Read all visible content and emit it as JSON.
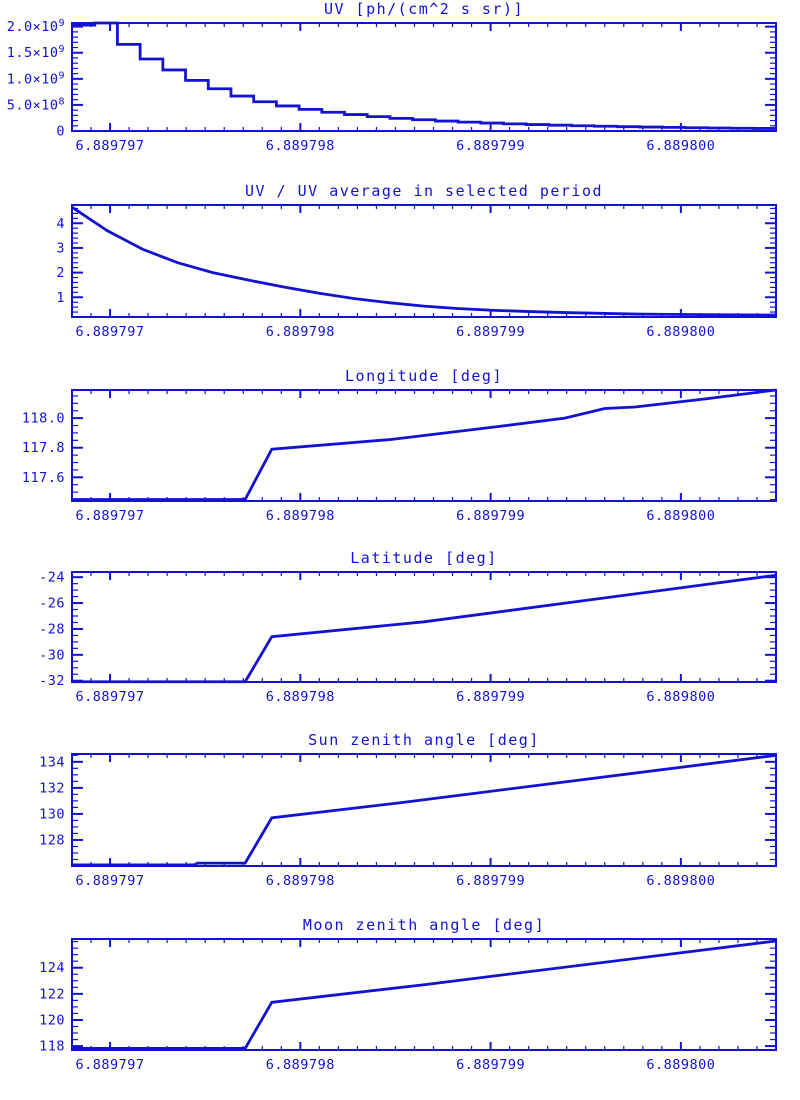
{
  "figure": {
    "background": "#ffffff",
    "line_color": "#1212d0",
    "x_axis": {
      "range": [
        6.8897968,
        6.8898005
      ],
      "major_ticks": [
        6.889797,
        6.889798,
        6.889799,
        6.8898
      ],
      "major_tick_labels": [
        "6.889797",
        "6.889798",
        "6.889799",
        "6.889800"
      ],
      "minor_tick_step": 1e-07
    }
  },
  "chart_data": [
    {
      "type": "step",
      "title": "UV [ph/(cm^2 s sr)]",
      "ylim": [
        0,
        2070000000.0
      ],
      "y_ticks": [
        {
          "value": 0,
          "label": "0"
        },
        {
          "value": 500000000.0,
          "label": "5.0×10^8"
        },
        {
          "value": 1000000000.0,
          "label": "1.0×10^9"
        },
        {
          "value": 1500000000.0,
          "label": "1.5×10^9"
        },
        {
          "value": 2000000000.0,
          "label": "2.0×10^9"
        }
      ],
      "y_minor_step": 100000000.0,
      "x_start": 6.8897968,
      "x_end": 6.8898005,
      "values": [
        2030000000.0,
        2070000000.0,
        1660000000.0,
        1380000000.0,
        1170000000.0,
        970000000.0,
        810000000.0,
        670000000.0,
        560000000.0,
        480000000.0,
        415000000.0,
        360000000.0,
        315000000.0,
        275000000.0,
        242000000.0,
        215000000.0,
        190000000.0,
        170000000.0,
        152000000.0,
        137000000.0,
        123000000.0,
        111000000.0,
        100000000.0,
        91000000.0,
        83000000.0,
        75000000.0,
        69000000.0,
        63000000.0,
        58000000.0,
        53000000.0,
        49000000.0
      ]
    },
    {
      "type": "line",
      "title": "UV / UV average in selected period",
      "ylim": [
        0.2,
        4.74
      ],
      "y_ticks": [
        {
          "value": 1,
          "label": "1"
        },
        {
          "value": 2,
          "label": "2"
        },
        {
          "value": 3,
          "label": "3"
        },
        {
          "value": 4,
          "label": "4"
        }
      ],
      "y_minor_step": 0.2,
      "x_start": 6.8897968,
      "x_end": 6.8898005,
      "values": [
        4.65,
        3.7,
        2.95,
        2.4,
        2.0,
        1.7,
        1.42,
        1.17,
        0.95,
        0.78,
        0.64,
        0.54,
        0.47,
        0.42,
        0.38,
        0.35,
        0.32,
        0.305,
        0.295,
        0.285,
        0.28
      ]
    },
    {
      "type": "line",
      "title": "Longitude [deg]",
      "ylim": [
        117.44,
        118.19
      ],
      "y_ticks": [
        {
          "value": 117.6,
          "label": "117.6"
        },
        {
          "value": 117.8,
          "label": "117.8"
        },
        {
          "value": 118.0,
          "label": "118.0"
        }
      ],
      "y_minor_step": 0.05,
      "points": [
        [
          6.8897968,
          117.45
        ],
        [
          6.88979771,
          117.45
        ],
        [
          6.88979785,
          117.79
        ],
        [
          6.88979847,
          117.855
        ],
        [
          6.88979902,
          117.94
        ],
        [
          6.88979939,
          118.0
        ],
        [
          6.8897996,
          118.065
        ],
        [
          6.88979976,
          118.075
        ],
        [
          6.88980013,
          118.13
        ],
        [
          6.8898005,
          118.19
        ]
      ]
    },
    {
      "type": "line",
      "title": "Latitude [deg]",
      "ylim": [
        -32.1,
        -23.6
      ],
      "y_ticks": [
        {
          "value": -32,
          "label": "-32"
        },
        {
          "value": -30,
          "label": "-30"
        },
        {
          "value": -28,
          "label": "-28"
        },
        {
          "value": -26,
          "label": "-26"
        },
        {
          "value": -24,
          "label": "-24"
        }
      ],
      "y_minor_step": 0.5,
      "points": [
        [
          6.8897968,
          -32.08
        ],
        [
          6.88979771,
          -32.08
        ],
        [
          6.88979785,
          -28.6
        ],
        [
          6.88979865,
          -27.45
        ],
        [
          6.8898005,
          -23.85
        ]
      ]
    },
    {
      "type": "line",
      "title": "Sun zenith angle [deg]",
      "ylim": [
        126.0,
        134.6
      ],
      "y_ticks": [
        {
          "value": 128,
          "label": "128"
        },
        {
          "value": 130,
          "label": "130"
        },
        {
          "value": 132,
          "label": "132"
        },
        {
          "value": 134,
          "label": "134"
        }
      ],
      "y_minor_step": 0.5,
      "points": [
        [
          6.8897968,
          126.08
        ],
        [
          6.88979744,
          126.08
        ],
        [
          6.88979746,
          126.22
        ],
        [
          6.88979771,
          126.22
        ],
        [
          6.88979785,
          129.7
        ],
        [
          6.88979852,
          130.85
        ],
        [
          6.8898005,
          134.5
        ]
      ]
    },
    {
      "type": "line",
      "title": "Moon zenith angle [deg]",
      "ylim": [
        117.7,
        126.2
      ],
      "y_ticks": [
        {
          "value": 118,
          "label": "118"
        },
        {
          "value": 120,
          "label": "120"
        },
        {
          "value": 122,
          "label": "122"
        },
        {
          "value": 124,
          "label": "124"
        }
      ],
      "y_minor_step": 0.5,
      "points": [
        [
          6.8897968,
          117.82
        ],
        [
          6.88979771,
          117.82
        ],
        [
          6.88979785,
          121.35
        ],
        [
          6.88979865,
          122.7
        ],
        [
          6.8898005,
          126.05
        ]
      ]
    }
  ]
}
